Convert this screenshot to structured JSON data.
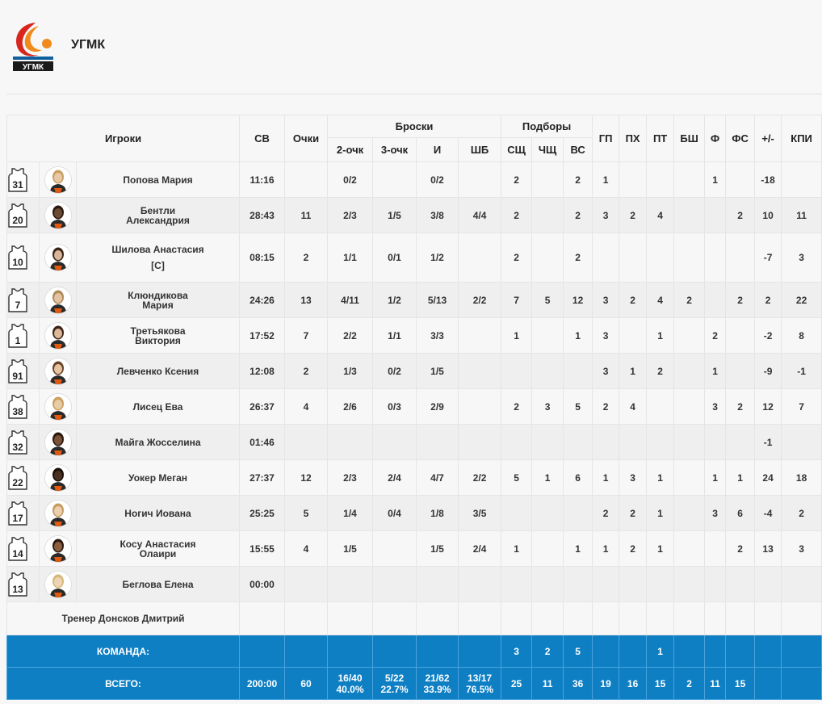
{
  "team": {
    "name": "УГМК"
  },
  "headers": {
    "players": "Игроки",
    "min": "СВ",
    "pts": "Очки",
    "shots": "Броски",
    "two": "2-очк",
    "three": "3-очк",
    "fg": "И",
    "ft": "ШБ",
    "rebounds": "Подборы",
    "dreb": "СЩ",
    "oreb": "ЧЩ",
    "treb": "ВС",
    "ast": "ГП",
    "to": "ПХ",
    "stl": "ПТ",
    "blk": "БШ",
    "pf": "Ф",
    "fd": "ФС",
    "pm": "+/-",
    "eff": "КПИ"
  },
  "players": [
    {
      "number": "31",
      "name1": "Попова Мария",
      "name2": "",
      "captain": "",
      "min": "11:16",
      "pts": "",
      "two": "0/2",
      "three": "",
      "fg": "0/2",
      "ft": "",
      "dreb": "2",
      "oreb": "",
      "treb": "2",
      "ast": "1",
      "to": "",
      "stl": "",
      "blk": "",
      "pf": "1",
      "fd": "",
      "pm": "-18",
      "eff": ""
    },
    {
      "number": "20",
      "name1": "Бентли",
      "name2": "Александрия",
      "captain": "",
      "min": "28:43",
      "pts": "11",
      "two": "2/3",
      "three": "1/5",
      "fg": "3/8",
      "ft": "4/4",
      "dreb": "2",
      "oreb": "",
      "treb": "2",
      "ast": "3",
      "to": "2",
      "stl": "4",
      "blk": "",
      "pf": "",
      "fd": "2",
      "pm": "10",
      "eff": "11"
    },
    {
      "number": "10",
      "name1": "Шилова Анастасия",
      "name2": "",
      "captain": "[C]",
      "min": "08:15",
      "pts": "2",
      "two": "1/1",
      "three": "0/1",
      "fg": "1/2",
      "ft": "",
      "dreb": "2",
      "oreb": "",
      "treb": "2",
      "ast": "",
      "to": "",
      "stl": "",
      "blk": "",
      "pf": "",
      "fd": "",
      "pm": "-7",
      "eff": "3"
    },
    {
      "number": "7",
      "name1": "Клюндикова",
      "name2": "Мария",
      "captain": "",
      "min": "24:26",
      "pts": "13",
      "two": "4/11",
      "three": "1/2",
      "fg": "5/13",
      "ft": "2/2",
      "dreb": "7",
      "oreb": "5",
      "treb": "12",
      "ast": "3",
      "to": "2",
      "stl": "4",
      "blk": "2",
      "pf": "",
      "fd": "2",
      "pm": "2",
      "eff": "22"
    },
    {
      "number": "1",
      "name1": "Третьякова",
      "name2": "Виктория",
      "captain": "",
      "min": "17:52",
      "pts": "7",
      "two": "2/2",
      "three": "1/1",
      "fg": "3/3",
      "ft": "",
      "dreb": "1",
      "oreb": "",
      "treb": "1",
      "ast": "3",
      "to": "",
      "stl": "1",
      "blk": "",
      "pf": "2",
      "fd": "",
      "pm": "-2",
      "eff": "8"
    },
    {
      "number": "91",
      "name1": "Левченко Ксения",
      "name2": "",
      "captain": "",
      "min": "12:08",
      "pts": "2",
      "two": "1/3",
      "three": "0/2",
      "fg": "1/5",
      "ft": "",
      "dreb": "",
      "oreb": "",
      "treb": "",
      "ast": "3",
      "to": "1",
      "stl": "2",
      "blk": "",
      "pf": "1",
      "fd": "",
      "pm": "-9",
      "eff": "-1"
    },
    {
      "number": "38",
      "name1": "Лисец Ева",
      "name2": "",
      "captain": "",
      "min": "26:37",
      "pts": "4",
      "two": "2/6",
      "three": "0/3",
      "fg": "2/9",
      "ft": "",
      "dreb": "2",
      "oreb": "3",
      "treb": "5",
      "ast": "2",
      "to": "4",
      "stl": "",
      "blk": "",
      "pf": "3",
      "fd": "2",
      "pm": "12",
      "eff": "7"
    },
    {
      "number": "32",
      "name1": "Майга Жосселина",
      "name2": "",
      "captain": "",
      "min": "01:46",
      "pts": "",
      "two": "",
      "three": "",
      "fg": "",
      "ft": "",
      "dreb": "",
      "oreb": "",
      "treb": "",
      "ast": "",
      "to": "",
      "stl": "",
      "blk": "",
      "pf": "",
      "fd": "",
      "pm": "-1",
      "eff": ""
    },
    {
      "number": "22",
      "name1": "Уокер Меган",
      "name2": "",
      "captain": "",
      "min": "27:37",
      "pts": "12",
      "two": "2/3",
      "three": "2/4",
      "fg": "4/7",
      "ft": "2/2",
      "dreb": "5",
      "oreb": "1",
      "treb": "6",
      "ast": "1",
      "to": "3",
      "stl": "1",
      "blk": "",
      "pf": "1",
      "fd": "1",
      "pm": "24",
      "eff": "18"
    },
    {
      "number": "17",
      "name1": "Ногич Иована",
      "name2": "",
      "captain": "",
      "min": "25:25",
      "pts": "5",
      "two": "1/4",
      "three": "0/4",
      "fg": "1/8",
      "ft": "3/5",
      "dreb": "",
      "oreb": "",
      "treb": "",
      "ast": "2",
      "to": "2",
      "stl": "1",
      "blk": "",
      "pf": "3",
      "fd": "6",
      "pm": "-4",
      "eff": "2"
    },
    {
      "number": "14",
      "name1": "Косу Анастасия",
      "name2": "Олаири",
      "captain": "",
      "min": "15:55",
      "pts": "4",
      "two": "1/5",
      "three": "",
      "fg": "1/5",
      "ft": "2/4",
      "dreb": "1",
      "oreb": "",
      "treb": "1",
      "ast": "1",
      "to": "2",
      "stl": "1",
      "blk": "",
      "pf": "",
      "fd": "2",
      "pm": "13",
      "eff": "3"
    },
    {
      "number": "13",
      "name1": "Беглова Елена",
      "name2": "",
      "captain": "",
      "min": "00:00",
      "pts": "",
      "two": "",
      "three": "",
      "fg": "",
      "ft": "",
      "dreb": "",
      "oreb": "",
      "treb": "",
      "ast": "",
      "to": "",
      "stl": "",
      "blk": "",
      "pf": "",
      "fd": "",
      "pm": "",
      "eff": ""
    }
  ],
  "coach": "Тренер Донсков Дмитрий",
  "team_row": {
    "label": "КОМАНДА:",
    "dreb": "3",
    "oreb": "2",
    "treb": "5",
    "stl": "1"
  },
  "total_row": {
    "label": "ВСЕГО:",
    "min": "200:00",
    "pts": "60",
    "two": "16/40",
    "two_pct": "40.0%",
    "three": "5/22",
    "three_pct": "22.7%",
    "fg": "21/62",
    "fg_pct": "33.9%",
    "ft": "13/17",
    "ft_pct": "76.5%",
    "dreb": "25",
    "oreb": "11",
    "treb": "36",
    "ast": "19",
    "to": "16",
    "stl": "15",
    "blk": "2",
    "pf": "11",
    "fd": "15"
  },
  "colors": {
    "accent": "#0f7fc4",
    "logo_orange": "#f08a1c",
    "logo_red": "#d8261c"
  },
  "icons": {
    "jersey": "jersey-icon",
    "avatar": "player-avatar",
    "logo": "team-logo"
  }
}
